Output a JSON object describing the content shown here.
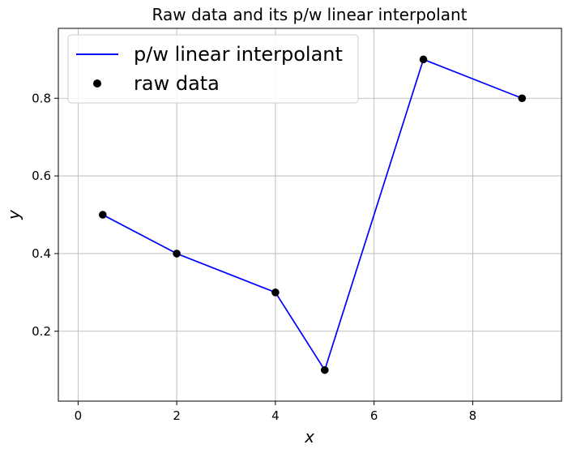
{
  "chart_data": {
    "type": "line",
    "title": "Raw data and its p/w linear interpolant",
    "xlabel": "x",
    "ylabel": "y",
    "xlim": [
      -0.4,
      9.8
    ],
    "ylim": [
      0.02,
      0.98
    ],
    "xticks": [
      0,
      2,
      4,
      6,
      8
    ],
    "yticks": [
      0.2,
      0.4,
      0.6,
      0.8
    ],
    "xtick_labels": [
      "0",
      "2",
      "4",
      "6",
      "8"
    ],
    "ytick_labels": [
      "0.2",
      "0.4",
      "0.6",
      "0.8"
    ],
    "grid": true,
    "legend_position": "top-left",
    "series": [
      {
        "name": "p/w linear interpolant",
        "kind": "line",
        "color": "#0000ff",
        "x": [
          0.5,
          2,
          4,
          5,
          7,
          9
        ],
        "y": [
          0.5,
          0.4,
          0.3,
          0.1,
          0.9,
          0.8
        ]
      },
      {
        "name": "raw data",
        "kind": "scatter",
        "color": "#000000",
        "x": [
          0.5,
          2,
          4,
          5,
          7,
          9
        ],
        "y": [
          0.5,
          0.4,
          0.3,
          0.1,
          0.9,
          0.8
        ]
      }
    ]
  }
}
